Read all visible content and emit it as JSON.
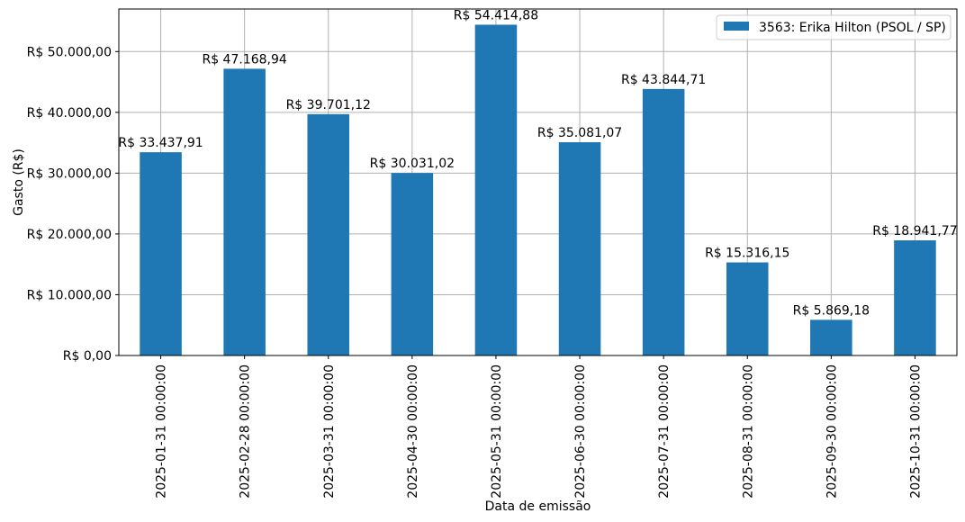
{
  "chart_data": {
    "type": "bar",
    "title": "",
    "xlabel": "Data de emissão",
    "ylabel": "Gasto (R$)",
    "ylim": [
      0,
      57000
    ],
    "yticks": [
      0,
      10000,
      20000,
      30000,
      40000,
      50000
    ],
    "ytick_labels": [
      "R$ 0,00",
      "R$ 10.000,00",
      "R$ 20.000,00",
      "R$ 30.000,00",
      "R$ 40.000,00",
      "R$ 50.000,00"
    ],
    "categories": [
      "2025-01-31 00:00:00",
      "2025-02-28 00:00:00",
      "2025-03-31 00:00:00",
      "2025-04-30 00:00:00",
      "2025-05-31 00:00:00",
      "2025-06-30 00:00:00",
      "2025-07-31 00:00:00",
      "2025-08-31 00:00:00",
      "2025-09-30 00:00:00",
      "2025-10-31 00:00:00"
    ],
    "series": [
      {
        "name": "3563: Erika Hilton (PSOL / SP)",
        "color": "#1f77b4",
        "values": [
          33437.91,
          47168.94,
          39701.12,
          30031.02,
          54414.88,
          35081.07,
          43844.71,
          15316.15,
          5869.18,
          18941.77
        ],
        "data_labels": [
          "R$ 33.437,91",
          "R$ 47.168,94",
          "R$ 39.701,12",
          "R$ 30.031,02",
          "R$ 54.414,88",
          "R$ 35.081,07",
          "R$ 43.844,71",
          "R$ 15.316,15",
          "R$ 5.869,18",
          "R$ 18.941,77"
        ]
      }
    ],
    "grid": true,
    "legend_position": "top-right"
  }
}
